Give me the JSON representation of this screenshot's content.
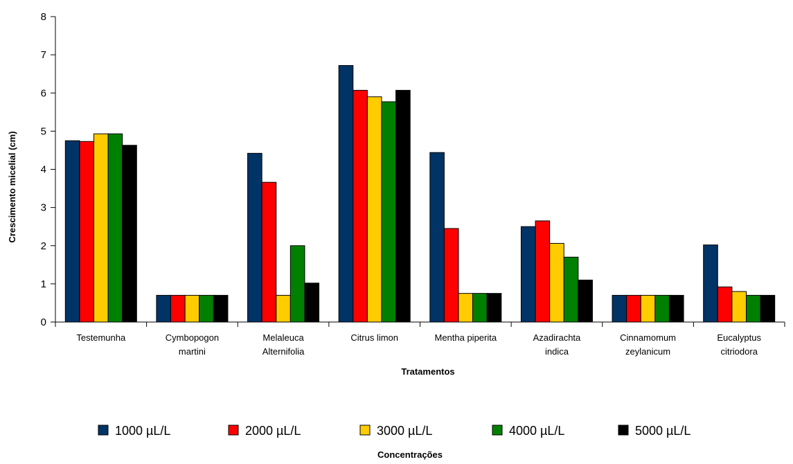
{
  "chart_data": {
    "type": "bar",
    "xlabel": "Tratamentos",
    "ylabel": "Crescimento micelial (cm)",
    "ylim": [
      0,
      8
    ],
    "yticks": [
      "0",
      "1",
      "2",
      "3",
      "4",
      "5",
      "6",
      "7",
      "8"
    ],
    "grid": false,
    "legend_title": "Concentrações",
    "legend_position": "bottom",
    "categories": [
      [
        "Testemunha"
      ],
      [
        "Cymbopogon",
        "martini"
      ],
      [
        "Melaleuca",
        "Alternifolia"
      ],
      [
        "Citrus limon"
      ],
      [
        "Mentha piperita"
      ],
      [
        "Azadirachta",
        "indica"
      ],
      [
        "Cinnamomum",
        "zeylanicum"
      ],
      [
        "Eucalyptus",
        "citriodora"
      ]
    ],
    "series": [
      {
        "name": "1000 µL/L",
        "color": "#003366",
        "values": [
          4.75,
          0.7,
          4.42,
          6.72,
          4.44,
          2.5,
          0.7,
          2.02
        ]
      },
      {
        "name": "2000 µL/L",
        "color": "#ff0000",
        "values": [
          4.73,
          0.7,
          3.66,
          6.07,
          2.45,
          2.65,
          0.7,
          0.92
        ]
      },
      {
        "name": "3000 µL/L",
        "color": "#ffcc00",
        "values": [
          4.93,
          0.7,
          0.7,
          5.9,
          0.75,
          2.06,
          0.7,
          0.8
        ]
      },
      {
        "name": "4000 µL/L",
        "color": "#008000",
        "values": [
          4.93,
          0.7,
          2.0,
          5.77,
          0.75,
          1.7,
          0.7,
          0.7
        ]
      },
      {
        "name": "5000 µL/L",
        "color": "#000000",
        "values": [
          4.63,
          0.7,
          1.02,
          6.07,
          0.75,
          1.1,
          0.7,
          0.7
        ]
      }
    ]
  }
}
